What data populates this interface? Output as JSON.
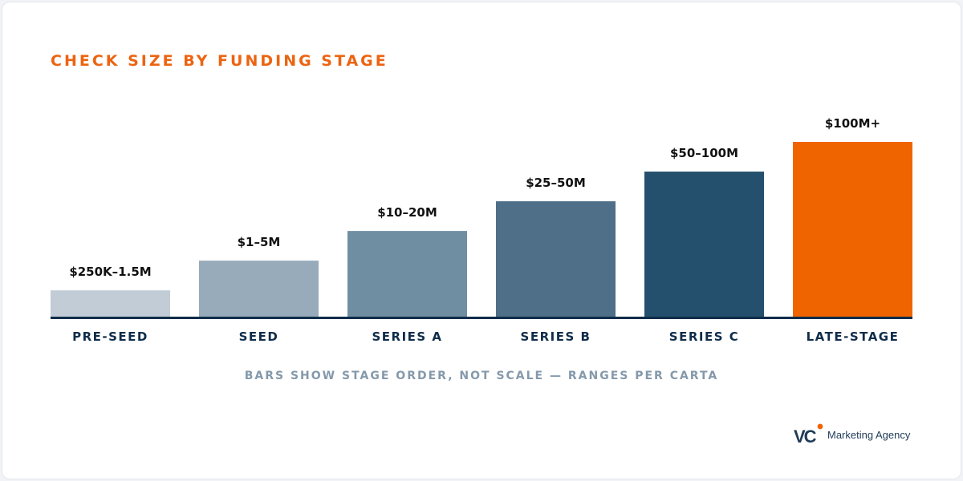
{
  "title": "CHECK SIZE BY FUNDING STAGE",
  "note": "BARS SHOW STAGE ORDER, NOT SCALE — RANGES PER CARTA",
  "brand": {
    "logo_text": "VC",
    "name": "Marketing Agency"
  },
  "colors": {
    "title": "#ec6411",
    "axis": "#0f2d4a",
    "label": "#0f2d4a",
    "note": "#8499ab",
    "bars": [
      "#c1ccd6",
      "#97abba",
      "#6f8ea2",
      "#4e6f87",
      "#25506d",
      "#f06400"
    ]
  },
  "chart_data": {
    "type": "bar",
    "categories": [
      "PRE-SEED",
      "SEED",
      "SERIES A",
      "SERIES B",
      "SERIES C",
      "LATE-STAGE"
    ],
    "values": [
      1,
      2,
      3,
      4,
      5,
      6
    ],
    "value_labels": [
      "$250K–1.5M",
      "$1–5M",
      "$10–20M",
      "$25–50M",
      "$50–100M",
      "$100M+"
    ],
    "title": "CHECK SIZE BY FUNDING STAGE",
    "xlabel": "",
    "ylabel": "",
    "grid": false,
    "legend": "none"
  }
}
